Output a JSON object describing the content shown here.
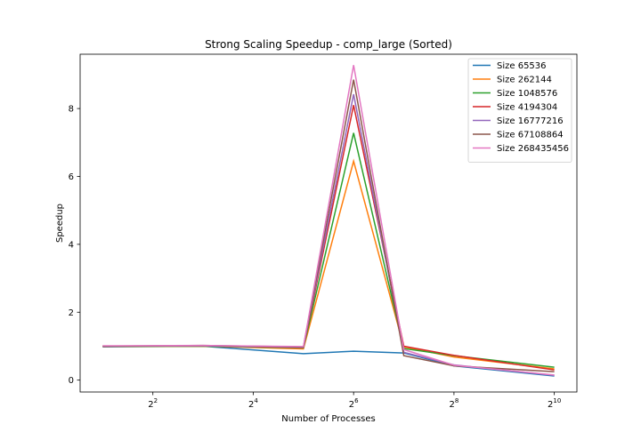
{
  "chart_data": {
    "type": "line",
    "title": "Strong Scaling Speedup - comp_large (Sorted)",
    "xlabel": "Number of Processes",
    "ylabel": "Speedup",
    "xscale": "log2",
    "xlim": [
      2,
      1024
    ],
    "ylim": [
      -0.35,
      9.6
    ],
    "x": [
      2,
      8,
      32,
      64,
      128,
      256,
      1024
    ],
    "x_ticks": [
      {
        "value": 4,
        "base": "2",
        "exp": "2"
      },
      {
        "value": 16,
        "base": "2",
        "exp": "4"
      },
      {
        "value": 64,
        "base": "2",
        "exp": "6"
      },
      {
        "value": 256,
        "base": "2",
        "exp": "8"
      },
      {
        "value": 1024,
        "base": "2",
        "exp": "10"
      }
    ],
    "y_ticks": [
      0,
      2,
      4,
      6,
      8
    ],
    "grid": false,
    "legend_position": "top-right",
    "series": [
      {
        "name": "Size 65536",
        "color": "#1f77b4",
        "values": [
          0.98,
          1.0,
          0.78,
          0.85,
          0.8,
          0.42,
          0.12
        ]
      },
      {
        "name": "Size 262144",
        "color": "#ff7f0e",
        "values": [
          0.99,
          1.0,
          0.92,
          6.45,
          0.98,
          0.68,
          0.33
        ]
      },
      {
        "name": "Size 1048576",
        "color": "#2ca02c",
        "values": [
          1.0,
          1.0,
          0.95,
          7.28,
          0.93,
          0.72,
          0.38
        ]
      },
      {
        "name": "Size 4194304",
        "color": "#d62728",
        "values": [
          1.0,
          1.01,
          0.96,
          8.1,
          1.0,
          0.73,
          0.3
        ]
      },
      {
        "name": "Size 16777216",
        "color": "#9467bd",
        "values": [
          1.0,
          1.01,
          0.97,
          8.42,
          0.82,
          0.45,
          0.14
        ]
      },
      {
        "name": "Size 67108864",
        "color": "#8c564b",
        "values": [
          1.0,
          1.02,
          0.98,
          8.85,
          0.72,
          0.42,
          0.25
        ]
      },
      {
        "name": "Size 268435456",
        "color": "#e377c2",
        "values": [
          1.01,
          1.02,
          0.99,
          9.28,
          0.9,
          0.44,
          0.15
        ]
      }
    ]
  }
}
